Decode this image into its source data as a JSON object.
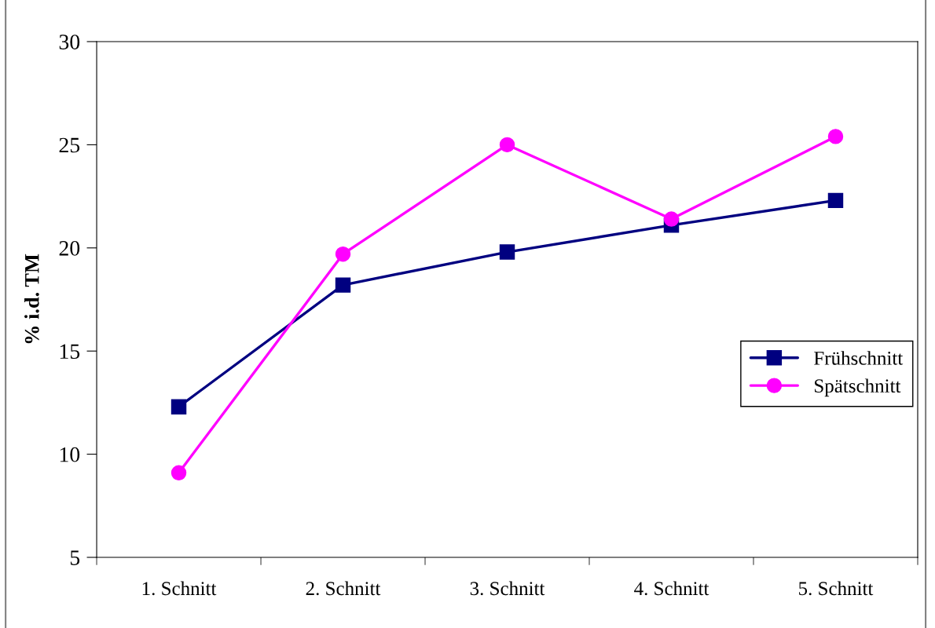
{
  "chart_data": {
    "type": "line",
    "ylabel": "% i.d. TM",
    "categories": [
      "1. Schnitt",
      "2. Schnitt",
      "3. Schnitt",
      "4. Schnitt",
      "5. Schnitt"
    ],
    "series": [
      {
        "name": "Frühschnitt",
        "color": "#000080",
        "marker": "square",
        "values": [
          12.3,
          18.2,
          19.8,
          21.1,
          22.3
        ]
      },
      {
        "name": "Spätschnitt",
        "color": "#ff00ff",
        "marker": "circle",
        "values": [
          9.1,
          19.7,
          25.0,
          21.4,
          25.4
        ]
      }
    ],
    "ylim": [
      5,
      30
    ],
    "yticks": [
      5,
      10,
      15,
      20,
      25,
      30
    ],
    "legend": "right",
    "line_style": "solid"
  }
}
